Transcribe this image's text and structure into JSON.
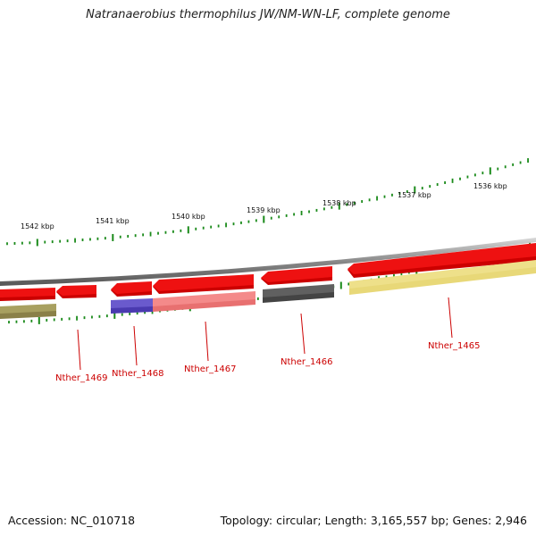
{
  "title": "Natranaerobius thermophilus JW/NM-WN-LF, complete genome",
  "footer": {
    "accession": "Accession: NC_010718",
    "summary": "Topology: circular; Length: 3,165,557 bp; Genes: 2,946"
  },
  "scale_labels": [
    "1542 kbp",
    "1541 kbp",
    "1540 kbp",
    "1539 kbp",
    "1538 kbp",
    "1537 kbp",
    "1536 kbp"
  ],
  "genes": [
    {
      "label": "Nther_1469"
    },
    {
      "label": "Nther_1468"
    },
    {
      "label": "Nther_1467"
    },
    {
      "label": "Nther_1466"
    },
    {
      "label": "Nther_1465"
    }
  ],
  "colors": {
    "cds_red": "#ee1111",
    "backbone": "#8a8a8a",
    "tick_green": "#1a8a1a",
    "label_red": "#cc0000",
    "feature_olive": "#a8a060",
    "feature_blue": "#6a5acd",
    "feature_pink": "#f48a8a",
    "feature_gray": "#606060",
    "feature_yellow": "#eee08a"
  }
}
